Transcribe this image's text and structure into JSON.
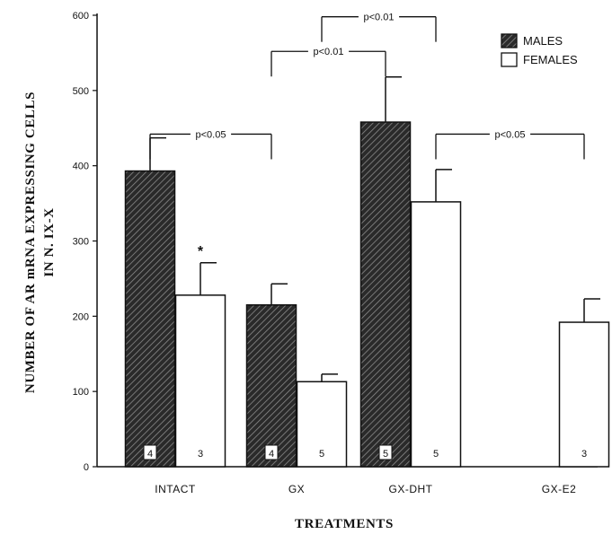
{
  "chart_data": {
    "type": "bar",
    "title": "",
    "xlabel": "TREATMENTS",
    "ylabel_lines": [
      "NUMBER OF AR mRNA EXPRESSING CELLS",
      "IN N. IX-X"
    ],
    "ylim": [
      0,
      600
    ],
    "yticks": [
      0,
      100,
      200,
      300,
      400,
      500,
      600
    ],
    "categories": [
      "INTACT",
      "GX",
      "GX-DHT",
      "GX-E2"
    ],
    "legend_position": "top-right",
    "series": [
      {
        "name": "MALES",
        "fill": "hatched",
        "values": [
          393,
          215,
          458,
          null
        ],
        "errors": [
          44,
          28,
          60,
          null
        ],
        "n": [
          "4",
          "4",
          "5",
          null
        ]
      },
      {
        "name": "FEMALES",
        "fill": "open",
        "values": [
          228,
          113,
          352,
          192
        ],
        "errors": [
          43,
          10,
          43,
          31
        ],
        "n": [
          "3",
          "5",
          "5",
          "3"
        ]
      }
    ],
    "annotations": {
      "star": {
        "text": "*",
        "series": 1,
        "category": 0
      },
      "significance": [
        {
          "text": "p<0.05",
          "from": [
            0,
            0
          ],
          "to": [
            1,
            0
          ],
          "level": 442
        },
        {
          "text": "p<0.01",
          "from": [
            1,
            0
          ],
          "to": [
            2,
            0
          ],
          "level": 552
        },
        {
          "text": "p<0.01",
          "from": [
            1,
            1
          ],
          "to": [
            2,
            1
          ],
          "level": 598
        },
        {
          "text": "p<0.05",
          "from": [
            2,
            1
          ],
          "to": [
            3,
            1
          ],
          "level": 442
        }
      ]
    }
  }
}
